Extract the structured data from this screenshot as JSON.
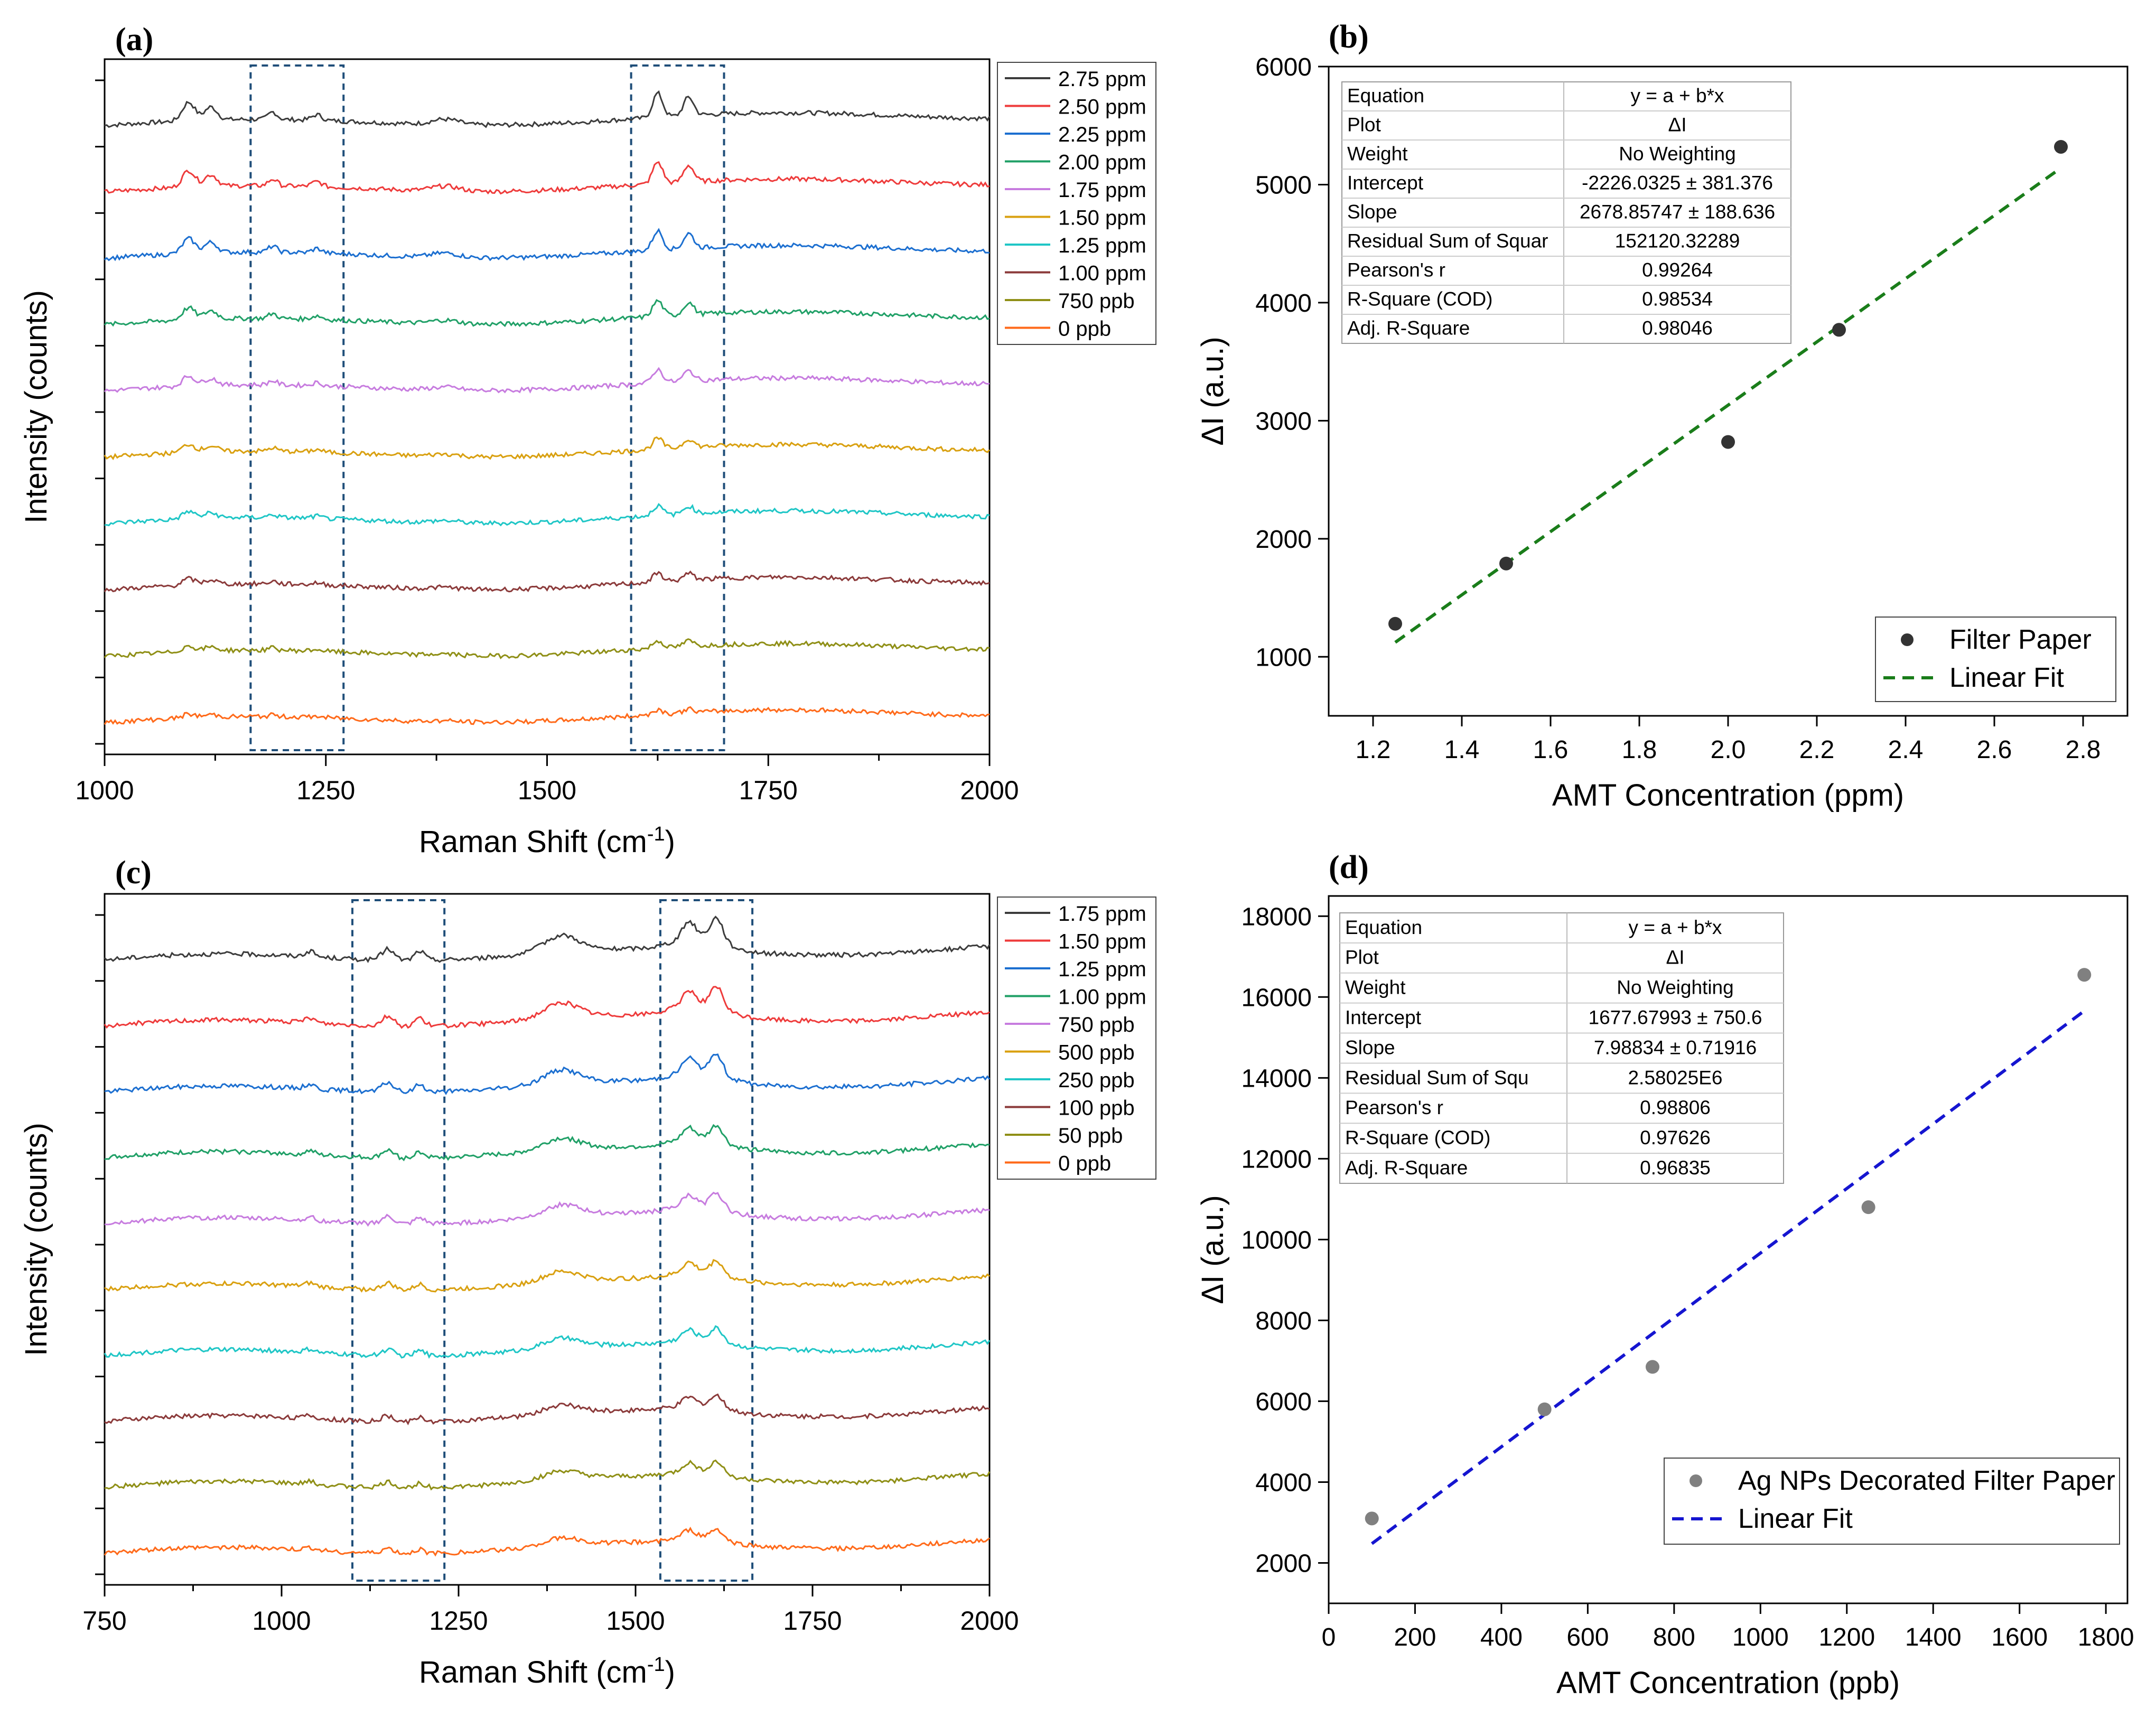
{
  "chart_data": [
    {
      "panel": "(a)",
      "type": "line",
      "xlabel": "Raman Shift (cm",
      "xlabel_sup": "-1",
      "xlabel_end": ")",
      "ylabel": "Intensity (counts)",
      "xlim": [
        1000,
        2000
      ],
      "xticks": [
        "1000",
        "1250",
        "1500",
        "1750",
        "2000"
      ],
      "highlight_regions": [
        [
          1165,
          1270
        ],
        [
          1595,
          1700
        ]
      ],
      "peaks": [
        {
          "x": 1095,
          "w": 10,
          "h": 5.0
        },
        {
          "x": 1120,
          "w": 10,
          "h": 3.5
        },
        {
          "x": 1190,
          "w": 7,
          "h": 2.0
        },
        {
          "x": 1240,
          "w": 8,
          "h": 1.5
        },
        {
          "x": 1385,
          "w": 22,
          "h": 1.5
        },
        {
          "x": 1625,
          "w": 8,
          "h": 6.5
        },
        {
          "x": 1660,
          "w": 8,
          "h": 5.0
        }
      ],
      "series": [
        {
          "name": "2.75 ppm",
          "color": "#3c3c3c",
          "scale": 1.0
        },
        {
          "name": "2.50 ppm",
          "color": "#ee3b3b",
          "scale": 0.9
        },
        {
          "name": "2.25 ppm",
          "color": "#1c6fd0",
          "scale": 0.8
        },
        {
          "name": "2.00 ppm",
          "color": "#20a067",
          "scale": 0.65
        },
        {
          "name": "1.75 ppm",
          "color": "#c77cdf",
          "scale": 0.55
        },
        {
          "name": "1.50 ppm",
          "color": "#d9a010",
          "scale": 0.45
        },
        {
          "name": "1.25 ppm",
          "color": "#1fc6c6",
          "scale": 0.4
        },
        {
          "name": "1.00 ppm",
          "color": "#8b3a3a",
          "scale": 0.35
        },
        {
          "name": "750 ppb",
          "color": "#8f8f16",
          "scale": 0.3
        },
        {
          "name": "0 ppb",
          "color": "#ff6a1a",
          "scale": 0.2
        }
      ]
    },
    {
      "panel": "(b)",
      "type": "scatter",
      "xlabel": "AMT Concentration (ppm)",
      "ylabel": "ΔI (a.u.)",
      "xlim": [
        1.1,
        2.9
      ],
      "ylim": [
        500,
        6000
      ],
      "xticks": [
        "1.2",
        "1.4",
        "1.6",
        "1.8",
        "2.0",
        "2.2",
        "2.4",
        "2.6",
        "2.8"
      ],
      "yticks": [
        "1000",
        "2000",
        "3000",
        "4000",
        "5000",
        "6000"
      ],
      "x": [
        1.25,
        1.5,
        2.0,
        2.25,
        2.75
      ],
      "y": [
        1280,
        1790,
        2820,
        3770,
        5320
      ],
      "fit": {
        "intercept": -2226.0325,
        "slope": 2678.85747,
        "x_range": [
          1.25,
          2.75
        ]
      },
      "marker_color": "#333333",
      "fit_color": "#1a7d1a",
      "legend": [
        "Filter Paper",
        "Linear Fit"
      ],
      "table": [
        [
          "Equation",
          "y = a + b*x"
        ],
        [
          "Plot",
          "ΔI"
        ],
        [
          "Weight",
          "No Weighting"
        ],
        [
          "Intercept",
          "-2226.0325 ± 381.376"
        ],
        [
          "Slope",
          "2678.85747 ± 188.636"
        ],
        [
          "Residual Sum of Squar",
          "152120.32289"
        ],
        [
          "Pearson's r",
          "0.99264"
        ],
        [
          "R-Square (COD)",
          "0.98534"
        ],
        [
          "Adj. R-Square",
          "0.98046"
        ]
      ]
    },
    {
      "panel": "(c)",
      "type": "line",
      "xlabel": "Raman Shift (cm",
      "xlabel_sup": "-1",
      "xlabel_end": ")",
      "ylabel": "Intensity (counts)",
      "xlim": [
        750,
        2000
      ],
      "xticks": [
        "750",
        "1000",
        "1250",
        "1500",
        "1750",
        "2000"
      ],
      "highlight_regions": [
        [
          1100,
          1230
        ],
        [
          1535,
          1665
        ]
      ],
      "peaks": [
        {
          "x": 1040,
          "w": 10,
          "h": 1.5
        },
        {
          "x": 1150,
          "w": 12,
          "h": 3.0
        },
        {
          "x": 1195,
          "w": 10,
          "h": 2.5
        },
        {
          "x": 1395,
          "w": 35,
          "h": 4.5
        },
        {
          "x": 1575,
          "w": 12,
          "h": 4.0
        },
        {
          "x": 1615,
          "w": 12,
          "h": 6.0
        },
        {
          "x": 1590,
          "w": 45,
          "h": 4.0
        }
      ],
      "series": [
        {
          "name": "1.75 ppm",
          "color": "#3c3c3c",
          "scale": 1.0
        },
        {
          "name": "1.50 ppm",
          "color": "#ee3b3b",
          "scale": 0.9
        },
        {
          "name": "1.25 ppm",
          "color": "#1c6fd0",
          "scale": 0.85
        },
        {
          "name": "1.00 ppm",
          "color": "#20a067",
          "scale": 0.7
        },
        {
          "name": "750 ppb",
          "color": "#c77cdf",
          "scale": 0.65
        },
        {
          "name": "500 ppb",
          "color": "#d9a010",
          "scale": 0.6
        },
        {
          "name": "250 ppb",
          "color": "#1fc6c6",
          "scale": 0.55
        },
        {
          "name": "100 ppb",
          "color": "#8b3a3a",
          "scale": 0.5
        },
        {
          "name": "50 ppb",
          "color": "#8f8f16",
          "scale": 0.5
        },
        {
          "name": "0 ppb",
          "color": "#ff6a1a",
          "scale": 0.45
        }
      ]
    },
    {
      "panel": "(d)",
      "type": "scatter",
      "xlabel": "AMT Concentration (ppb)",
      "ylabel": "ΔI (a.u.)",
      "xlim": [
        0,
        1850
      ],
      "ylim": [
        1000,
        18500
      ],
      "xticks": [
        "0",
        "200",
        "400",
        "600",
        "800",
        "1000",
        "1200",
        "1400",
        "1600",
        "1800"
      ],
      "yticks": [
        "2000",
        "4000",
        "6000",
        "8000",
        "10000",
        "12000",
        "14000",
        "16000",
        "18000"
      ],
      "x": [
        100,
        500,
        750,
        1250,
        1750
      ],
      "y": [
        3100,
        5800,
        6850,
        10800,
        16550
      ],
      "fit": {
        "intercept": 1677.67993,
        "slope": 7.98834,
        "x_range": [
          100,
          1750
        ]
      },
      "marker_color": "#808080",
      "fit_color": "#1515d0",
      "legend": [
        "Ag NPs Decorated Filter Paper",
        "Linear Fit"
      ],
      "table": [
        [
          "Equation",
          "y = a + b*x"
        ],
        [
          "Plot",
          "ΔI"
        ],
        [
          "Weight",
          "No Weighting"
        ],
        [
          "Intercept",
          "1677.67993 ± 750.6"
        ],
        [
          "Slope",
          "7.98834 ± 0.71916"
        ],
        [
          "Residual Sum of Squ",
          "2.58025E6"
        ],
        [
          "Pearson's r",
          "0.98806"
        ],
        [
          "R-Square (COD)",
          "0.97626"
        ],
        [
          "Adj. R-Square",
          "0.96835"
        ]
      ]
    }
  ]
}
